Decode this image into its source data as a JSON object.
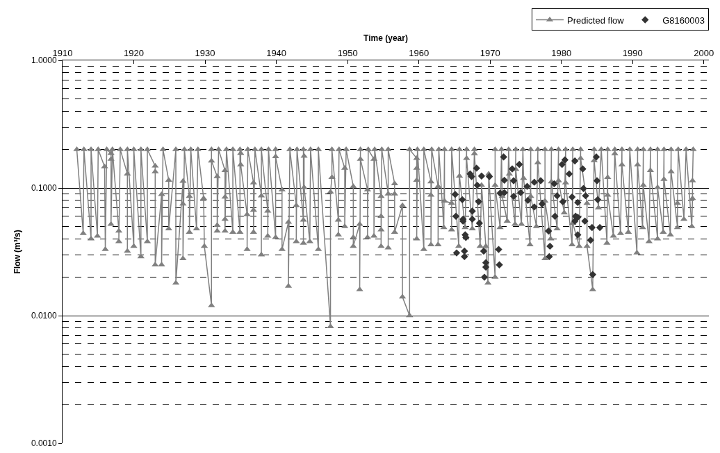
{
  "chart_data": {
    "type": "line",
    "xlabel": "Time (year)",
    "ylabel": "Flow (m³/s)",
    "xlim": [
      1910,
      2000.7
    ],
    "xticks": [
      1910,
      1920,
      1930,
      1940,
      1950,
      1960,
      1970,
      1980,
      1990,
      2000
    ],
    "ylim": [
      0.001,
      1
    ],
    "log": "y",
    "yticks": [
      {
        "value": 0.001,
        "label": "0.0010"
      },
      {
        "value": 0.002,
        "label": null
      },
      {
        "value": 0.003,
        "label": null
      },
      {
        "value": 0.004,
        "label": null
      },
      {
        "value": 0.005,
        "label": null
      },
      {
        "value": 0.006,
        "label": null
      },
      {
        "value": 0.007,
        "label": null
      },
      {
        "value": 0.008,
        "label": null
      },
      {
        "value": 0.009,
        "label": null
      },
      {
        "value": 0.01,
        "label": "0.0100"
      },
      {
        "value": 0.02,
        "label": null
      },
      {
        "value": 0.03,
        "label": null
      },
      {
        "value": 0.04,
        "label": null
      },
      {
        "value": 0.05,
        "label": null
      },
      {
        "value": 0.06,
        "label": null
      },
      {
        "value": 0.07,
        "label": null
      },
      {
        "value": 0.08,
        "label": null
      },
      {
        "value": 0.09,
        "label": null
      },
      {
        "value": 0.1,
        "label": "0.1000"
      },
      {
        "value": 0.2,
        "label": null
      },
      {
        "value": 0.3,
        "label": null
      },
      {
        "value": 0.4,
        "label": null
      },
      {
        "value": 0.5,
        "label": null
      },
      {
        "value": 0.6,
        "label": null
      },
      {
        "value": 0.7,
        "label": null
      },
      {
        "value": 0.8,
        "label": null
      },
      {
        "value": 0.9,
        "label": null
      },
      {
        "value": 1,
        "label": "1.0000"
      }
    ],
    "grid": "y",
    "legend": "top right",
    "series": [
      {
        "name": "Predicted flow",
        "type": "line",
        "color": "#808080",
        "marker": "triangle",
        "line_style": "solid",
        "x": [
          1912.0,
          1912.9,
          1913.0,
          1914.0,
          1914.0,
          1914.9,
          1915.0,
          1915.9,
          1916.0,
          1916.2,
          1916.8,
          1916.8,
          1916.8,
          1917.0,
          1917.9,
          1917.9,
          1918.1,
          1919.1,
          1919.1,
          1919.1,
          1920.0,
          1920.0,
          1921.0,
          1921.0,
          1921.9,
          1921.9,
          1923.0,
          1923.0,
          1923.0,
          1923.9,
          1923.9,
          1924.1,
          1924.9,
          1924.9,
          1925.9,
          1925.9,
          1926.9,
          1926.9,
          1926.9,
          1927.1,
          1927.8,
          1927.8,
          1928.0,
          1928.8,
          1929.0,
          1929.8,
          1929.9,
          1930.9,
          1930.9,
          1930.9,
          1931.7,
          1931.7,
          1931.7,
          1931.9,
          1932.8,
          1932.8,
          1932.8,
          1932.8,
          1933.0,
          1933.9,
          1933.9,
          1934.9,
          1934.9,
          1935.0,
          1935.0,
          1935.9,
          1935.9,
          1936.0,
          1936.8,
          1936.8,
          1936.8,
          1937.0,
          1937.9,
          1937.9,
          1937.9,
          1938.8,
          1938.8,
          1938.9,
          1939.9,
          1939.9,
          1939.9,
          1940.8,
          1940.8,
          1941.7,
          1941.7,
          1941.9,
          1942.8,
          1942.8,
          1942.9,
          1943.8,
          1943.8,
          1943.8,
          1943.9,
          1943.9,
          1944.7,
          1944.8,
          1945.9,
          1945.9,
          1947.6,
          1947.6,
          1947.8,
          1947.8,
          1948.7,
          1948.7,
          1948.8,
          1949.6,
          1949.6,
          1949.8,
          1950.8,
          1950.8,
          1950.8,
          1951.7,
          1951.7,
          1951.8,
          1951.8,
          1952.8,
          1952.8,
          1952.9,
          1953.7,
          1953.7,
          1953.8,
          1954.7,
          1954.7,
          1954.7,
          1954.7,
          1954.8,
          1955.7,
          1955.7,
          1955.7,
          1956.6,
          1956.6,
          1956.6,
          1957.7,
          1957.7,
          1958.7,
          1958.7,
          1959.7,
          1959.7,
          1959.7,
          1959.7,
          1959.8,
          1960.7,
          1960.7,
          1961.7,
          1961.7,
          1961.7,
          1961.8,
          1962.7,
          1962.7,
          1962.8,
          1963.5,
          1963.6,
          1963.6,
          1964.6,
          1964.6,
          1964.6,
          1965.6,
          1965.7,
          1965.7,
          1966.5,
          1966.7,
          1966.7,
          1967.5,
          1967.8,
          1967.8,
          1968.6,
          1968.8,
          1969.4,
          1969.7,
          1969.8,
          1970.7,
          1970.7,
          1970.7,
          1971.4,
          1971.6,
          1971.7,
          1972.4,
          1972.6,
          1972.7,
          1973.5,
          1973.6,
          1973.6,
          1974.4,
          1974.6,
          1974.7,
          1975.6,
          1975.7,
          1975.7,
          1976.5,
          1976.7,
          1976.7,
          1977.7,
          1977.7,
          1977.7,
          1978.5,
          1978.6,
          1978.6,
          1979.4,
          1979.6,
          1979.6,
          1980.4,
          1980.6,
          1980.6,
          1981.5,
          1981.6,
          1981.6,
          1982.5,
          1982.7,
          1982.7,
          1983.6,
          1983.6,
          1984.4,
          1984.6,
          1984.6,
          1985.2,
          1985.6,
          1986.4,
          1986.5,
          1986.5,
          1986.5,
          1987.3,
          1987.5,
          1987.5,
          1988.3,
          1988.5,
          1988.5,
          1989.4,
          1989.6,
          1990.6,
          1990.7,
          1990.7,
          1991.4,
          1991.5,
          1991.5,
          1992.3,
          1992.5,
          1992.5,
          1993.5,
          1993.5,
          1993.5,
          1994.3,
          1994.4,
          1994.4,
          1995.3,
          1995.4,
          1995.4,
          1996.3,
          1996.3,
          1996.4,
          1997.2,
          1997.5,
          1998.3,
          1998.4,
          1998.4,
          1998.5
        ],
        "values": [
          0.2,
          0.044,
          0.2,
          0.04,
          0.2,
          0.042,
          0.2,
          0.147,
          0.033,
          0.2,
          0.187,
          0.168,
          0.052,
          0.2,
          0.046,
          0.038,
          0.2,
          0.129,
          0.032,
          0.2,
          0.035,
          0.2,
          0.029,
          0.2,
          0.038,
          0.2,
          0.149,
          0.134,
          0.025,
          0.089,
          0.025,
          0.2,
          0.115,
          0.048,
          0.2,
          0.018,
          0.113,
          0.075,
          0.028,
          0.2,
          0.086,
          0.045,
          0.2,
          0.048,
          0.2,
          0.083,
          0.035,
          0.012,
          0.2,
          0.163,
          0.123,
          0.051,
          0.046,
          0.2,
          0.137,
          0.085,
          0.057,
          0.046,
          0.2,
          0.045,
          0.2,
          0.045,
          0.2,
          0.187,
          0.152,
          0.062,
          0.033,
          0.2,
          0.11,
          0.067,
          0.045,
          0.2,
          0.087,
          0.03,
          0.2,
          0.066,
          0.042,
          0.2,
          0.041,
          0.2,
          0.176,
          0.097,
          0.033,
          0.054,
          0.017,
          0.2,
          0.073,
          0.038,
          0.2,
          0.056,
          0.037,
          0.2,
          0.178,
          0.101,
          0.038,
          0.2,
          0.033,
          0.2,
          0.0082,
          0.093,
          0.121,
          0.2,
          0.056,
          0.043,
          0.2,
          0.143,
          0.05,
          0.2,
          0.103,
          0.041,
          0.035,
          0.052,
          0.016,
          0.2,
          0.168,
          0.097,
          0.041,
          0.2,
          0.168,
          0.042,
          0.2,
          0.086,
          0.06,
          0.047,
          0.035,
          0.2,
          0.09,
          0.034,
          0.2,
          0.108,
          0.09,
          0.045,
          0.073,
          0.014,
          0.01,
          0.2,
          0.171,
          0.143,
          0.115,
          0.04,
          0.2,
          0.033,
          0.2,
          0.112,
          0.088,
          0.036,
          0.2,
          0.103,
          0.036,
          0.2,
          0.049,
          0.2,
          0.079,
          0.076,
          0.047,
          0.2,
          0.035,
          0.2,
          0.124,
          0.049,
          0.2,
          0.171,
          0.048,
          0.2,
          0.186,
          0.035,
          0.105,
          0.035,
          0.018,
          0.129,
          0.02,
          0.2,
          0.105,
          0.049,
          0.2,
          0.086,
          0.055,
          0.2,
          0.129,
          0.052,
          0.2,
          0.14,
          0.052,
          0.2,
          0.119,
          0.036,
          0.2,
          0.086,
          0.05,
          0.2,
          0.158,
          0.028,
          0.2,
          0.079,
          0.04,
          0.2,
          0.112,
          0.048,
          0.2,
          0.114,
          0.064,
          0.2,
          0.11,
          0.036,
          0.2,
          0.053,
          0.035,
          0.2,
          0.171,
          0.076,
          0.035,
          0.016,
          0.2,
          0.164,
          0.07,
          0.2,
          0.037,
          0.2,
          0.121,
          0.088,
          0.042,
          0.2,
          0.186,
          0.044,
          0.2,
          0.152,
          0.045,
          0.2,
          0.031,
          0.2,
          0.152,
          0.049,
          0.2,
          0.105,
          0.038,
          0.2,
          0.137,
          0.04,
          0.2,
          0.101,
          0.045,
          0.2,
          0.117,
          0.043,
          0.2,
          0.134,
          0.049,
          0.076,
          0.2,
          0.057,
          0.2,
          0.05,
          0.083,
          0.114,
          0.2
        ]
      },
      {
        "name": "G8160003",
        "type": "scatter",
        "color": "#333333",
        "marker": "diamond",
        "x": [
          1965.1,
          1965.2,
          1965.3,
          1966.1,
          1966.2,
          1966.2,
          1966.4,
          1966.4,
          1966.5,
          1966.6,
          1967.2,
          1967.4,
          1967.5,
          1967.5,
          1968.1,
          1968.2,
          1968.4,
          1968.5,
          1968.8,
          1969.1,
          1969.2,
          1969.4,
          1969.4,
          1969.9,
          1971.2,
          1971.3,
          1971.4,
          1971.9,
          1972.0,
          1972.0,
          1973.1,
          1973.3,
          1973.3,
          1974.1,
          1974.3,
          1975.2,
          1975.3,
          1976.2,
          1976.2,
          1977.1,
          1977.3,
          1978.2,
          1978.3,
          1978.4,
          1979.0,
          1979.1,
          1979.4,
          1980.1,
          1980.2,
          1980.5,
          1981.1,
          1981.5,
          1981.9,
          1981.9,
          1982.0,
          1982.3,
          1982.3,
          1982.3,
          1983.0,
          1983.1,
          1983.3,
          1983.4,
          1984.1,
          1984.3,
          1984.4,
          1984.9,
          1985.0,
          1985.1,
          1985.4
        ],
        "values": [
          0.089,
          0.06,
          0.031,
          0.081,
          0.057,
          0.055,
          0.032,
          0.029,
          0.043,
          0.041,
          0.129,
          0.123,
          0.066,
          0.057,
          0.143,
          0.105,
          0.078,
          0.053,
          0.124,
          0.032,
          0.02,
          0.024,
          0.026,
          0.123,
          0.033,
          0.025,
          0.091,
          0.175,
          0.115,
          0.092,
          0.141,
          0.114,
          0.086,
          0.153,
          0.092,
          0.103,
          0.08,
          0.111,
          0.071,
          0.114,
          0.075,
          0.046,
          0.029,
          0.035,
          0.108,
          0.06,
          0.087,
          0.153,
          0.078,
          0.166,
          0.129,
          0.085,
          0.163,
          0.055,
          0.06,
          0.059,
          0.043,
          0.077,
          0.141,
          0.099,
          0.055,
          0.087,
          0.039,
          0.049,
          0.021,
          0.175,
          0.114,
          0.081,
          0.049
        ]
      }
    ]
  }
}
